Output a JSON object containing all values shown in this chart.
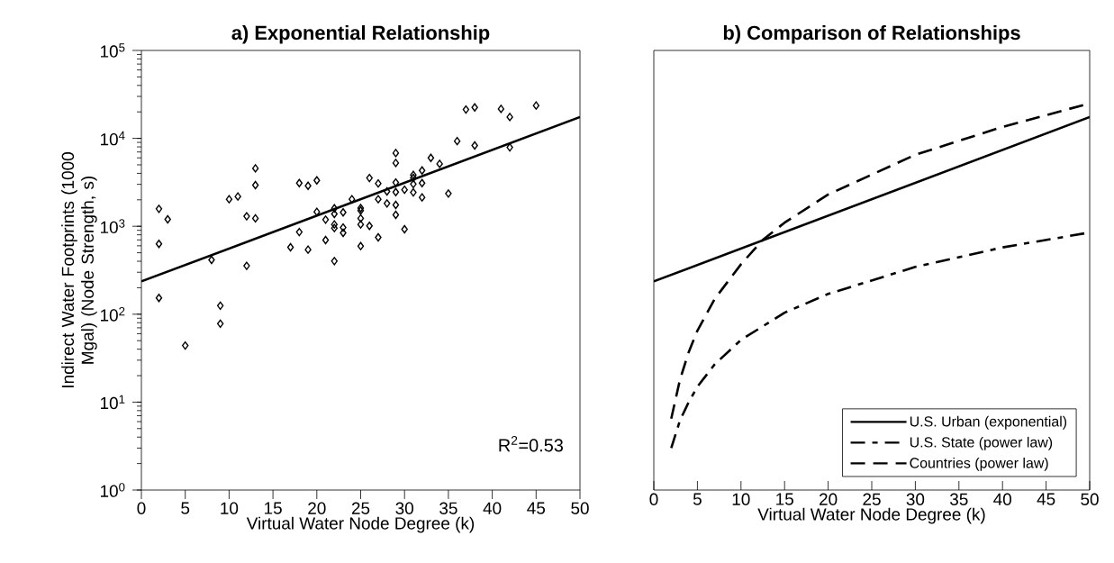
{
  "chart_data": [
    {
      "type": "scatter",
      "title": "a) Exponential Relationship",
      "xlabel": "Virtual Water Node Degree (k)",
      "ylabel": "Indirect Water Footprints (1000 Mgal) (Node Strength, s)",
      "annotations": [
        "R$^{2}$=0.53"
      ],
      "log": "y",
      "legend": false,
      "grid": false,
      "xlim": [
        0,
        50
      ],
      "xticks": [
        0,
        5,
        10,
        15,
        20,
        25,
        30,
        35,
        40,
        45,
        50
      ],
      "ylim": [
        1,
        100000
      ],
      "yticks": [
        {
          "value": 1,
          "label": "10$^{0}$"
        },
        {
          "value": 10,
          "label": "10$^{1}$"
        },
        {
          "value": 100,
          "label": "10$^{2}$"
        },
        {
          "value": 1000,
          "label": "10$^{3}$"
        },
        {
          "value": 10000,
          "label": "10$^{4}$"
        },
        {
          "value": 100000,
          "label": "10$^{5}$"
        }
      ],
      "series": [
        {
          "type": "scatter",
          "marker": "diamond",
          "color": "#000000",
          "x": [
            2,
            3,
            2,
            2,
            5,
            8,
            9,
            9,
            10,
            11,
            12,
            12,
            13,
            13,
            13,
            17,
            18,
            18,
            19,
            19,
            20,
            20,
            21,
            21,
            22,
            22,
            22,
            22,
            22,
            23,
            23,
            23,
            24,
            25,
            25,
            25,
            25,
            25,
            26,
            26,
            27,
            27,
            27,
            28,
            28,
            29,
            29,
            29,
            29,
            29,
            29,
            30,
            30,
            31,
            31,
            31,
            31,
            32,
            32,
            32,
            33,
            34,
            35,
            36,
            37,
            38,
            38,
            41,
            42,
            42,
            45
          ],
          "values": [
            1580,
            1200,
            630,
            153,
            44,
            415,
            125,
            78,
            2030,
            2180,
            1300,
            355,
            4560,
            2940,
            1230,
            577,
            3100,
            860,
            2890,
            542,
            3330,
            1460,
            1190,
            697,
            1600,
            1380,
            1050,
            955,
            402,
            1440,
            968,
            841,
            2030,
            1610,
            1510,
            1230,
            1050,
            595,
            3540,
            1010,
            3070,
            2030,
            748,
            2490,
            1820,
            6800,
            5250,
            3150,
            2450,
            1750,
            1350,
            2600,
            925,
            3840,
            3550,
            3020,
            2430,
            4310,
            3100,
            2130,
            6000,
            5130,
            2360,
            9300,
            21300,
            22500,
            8300,
            21600,
            17500,
            7900,
            23600
          ]
        },
        {
          "type": "line",
          "line_style": "solid",
          "color": "#000000",
          "x": [
            0,
            50
          ],
          "values": [
            236,
            17500
          ]
        }
      ]
    },
    {
      "type": "line",
      "title": "b) Comparison of Relationships",
      "xlabel": "Virtual Water Node Degree (k)",
      "log": "y",
      "legend": "bottom right",
      "grid": false,
      "tick_labels": "x",
      "xlim": [
        0,
        50
      ],
      "xticks": [
        0,
        5,
        10,
        15,
        20,
        25,
        30,
        35,
        40,
        45,
        50
      ],
      "ylim": [
        1,
        100000
      ],
      "series": [
        {
          "name": "U.S. Urban (exponential)",
          "line_style": "solid",
          "color": "#000000",
          "x": [
            0,
            50
          ],
          "values": [
            236,
            17500
          ]
        },
        {
          "name": "U.S. State (power law)",
          "line_style": "dashdot",
          "color": "#000000",
          "x": [
            2,
            3,
            4,
            5,
            7,
            10,
            15,
            20,
            30,
            40,
            50
          ],
          "values": [
            3,
            6.2,
            10,
            15,
            27,
            51,
            104,
            170,
            345,
            575,
            850
          ]
        },
        {
          "name": "Countries (power law)",
          "line_style": "dashed",
          "color": "#000000",
          "x": [
            2,
            3,
            4,
            5,
            7,
            10,
            12.5,
            15,
            20,
            30,
            40,
            50
          ],
          "values": [
            6.5,
            18,
            37,
            65,
            150,
            370,
            700,
            1100,
            2300,
            6500,
            13500,
            25000
          ]
        }
      ]
    }
  ]
}
